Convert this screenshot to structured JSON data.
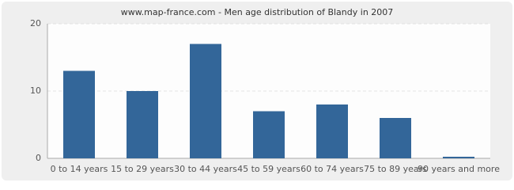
{
  "chart_data": {
    "type": "bar",
    "title": "www.map-france.com - Men age distribution of Blandy in 2007",
    "categories": [
      "0 to 14 years",
      "15 to 29 years",
      "30 to 44 years",
      "45 to 59 years",
      "60 to 74 years",
      "75 to 89 years",
      "90 years and more"
    ],
    "values": [
      13,
      10,
      17,
      7,
      8,
      6,
      0
    ],
    "color": "#336699",
    "ylim": [
      0,
      20
    ],
    "yticks": [
      0,
      10,
      20
    ],
    "grid": true
  }
}
